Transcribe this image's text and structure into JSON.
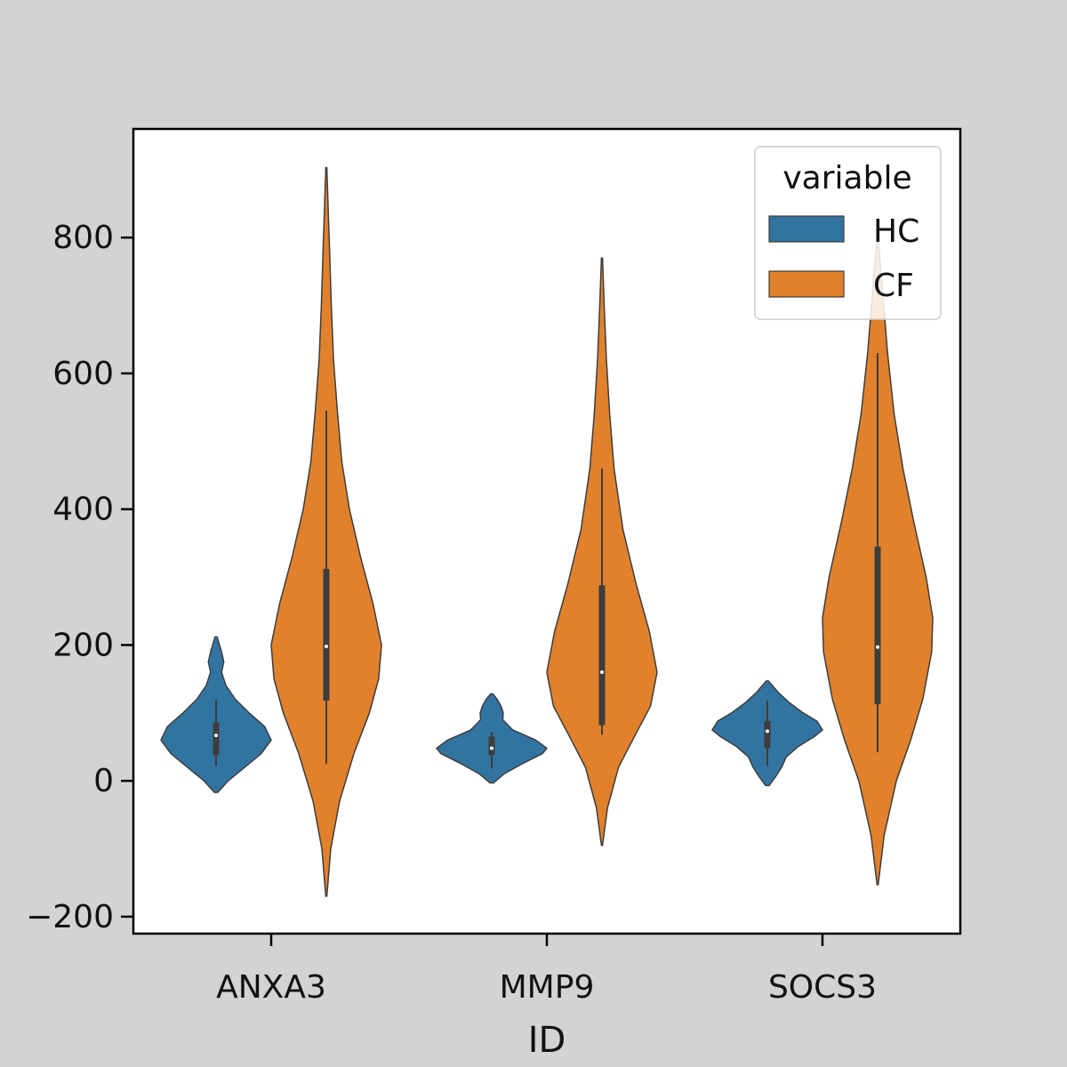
{
  "chart_data": {
    "type": "violin",
    "xlabel": "ID",
    "ylabel": "",
    "categories": [
      "ANXA3",
      "MMP9",
      "SOCS3"
    ],
    "ylim": [
      -225,
      960
    ],
    "yticks": [
      -200,
      0,
      200,
      400,
      600,
      800
    ],
    "ytick_labels": [
      "−200",
      "0",
      "200",
      "400",
      "600",
      "800"
    ],
    "grid": false,
    "legend": {
      "title": "variable",
      "placement": "top-right"
    },
    "series": [
      {
        "name": "HC",
        "color": "#3274a1",
        "violins": [
          {
            "category": "ANXA3",
            "min": 22,
            "q1": 38,
            "median": 67,
            "q3": 86,
            "max": 120,
            "kde_min": -17,
            "kde_max": 212,
            "density": [
              [
                -17,
                0.03
              ],
              [
                0,
                0.22
              ],
              [
                20,
                0.52
              ],
              [
                40,
                0.82
              ],
              [
                60,
                1.0
              ],
              [
                80,
                0.88
              ],
              [
                100,
                0.6
              ],
              [
                120,
                0.35
              ],
              [
                140,
                0.18
              ],
              [
                160,
                0.1
              ],
              [
                175,
                0.14
              ],
              [
                190,
                0.1
              ],
              [
                212,
                0.02
              ]
            ]
          },
          {
            "category": "MMP9",
            "min": 18,
            "q1": 38,
            "median": 48,
            "q3": 65,
            "max": 72,
            "kde_min": -3,
            "kde_max": 128,
            "density": [
              [
                -3,
                0.03
              ],
              [
                10,
                0.22
              ],
              [
                25,
                0.55
              ],
              [
                40,
                0.92
              ],
              [
                48,
                1.0
              ],
              [
                60,
                0.8
              ],
              [
                75,
                0.38
              ],
              [
                90,
                0.2
              ],
              [
                100,
                0.21
              ],
              [
                110,
                0.17
              ],
              [
                120,
                0.1
              ],
              [
                128,
                0.02
              ]
            ]
          },
          {
            "category": "SOCS3",
            "min": 22,
            "q1": 48,
            "median": 73,
            "q3": 88,
            "max": 118,
            "kde_min": -7,
            "kde_max": 147,
            "density": [
              [
                -7,
                0.03
              ],
              [
                5,
                0.14
              ],
              [
                20,
                0.26
              ],
              [
                35,
                0.34
              ],
              [
                50,
                0.55
              ],
              [
                65,
                0.85
              ],
              [
                75,
                1.0
              ],
              [
                88,
                0.9
              ],
              [
                100,
                0.65
              ],
              [
                115,
                0.4
              ],
              [
                130,
                0.2
              ],
              [
                147,
                0.02
              ]
            ]
          }
        ]
      },
      {
        "name": "CF",
        "color": "#e1812c",
        "violins": [
          {
            "category": "ANXA3",
            "min": 25,
            "q1": 118,
            "median": 198,
            "q3": 312,
            "max": 545,
            "kde_min": -170,
            "kde_max": 903,
            "density": [
              [
                -170,
                0.01
              ],
              [
                -100,
                0.08
              ],
              [
                -30,
                0.24
              ],
              [
                40,
                0.5
              ],
              [
                100,
                0.78
              ],
              [
                150,
                0.95
              ],
              [
                200,
                1.0
              ],
              [
                260,
                0.85
              ],
              [
                330,
                0.62
              ],
              [
                400,
                0.42
              ],
              [
                470,
                0.28
              ],
              [
                545,
                0.2
              ],
              [
                620,
                0.13
              ],
              [
                700,
                0.09
              ],
              [
                780,
                0.06
              ],
              [
                850,
                0.03
              ],
              [
                903,
                0.01
              ]
            ]
          },
          {
            "category": "MMP9",
            "min": 68,
            "q1": 82,
            "median": 160,
            "q3": 288,
            "max": 460,
            "kde_min": -95,
            "kde_max": 770,
            "density": [
              [
                -95,
                0.01
              ],
              [
                -40,
                0.1
              ],
              [
                20,
                0.3
              ],
              [
                70,
                0.62
              ],
              [
                110,
                0.88
              ],
              [
                160,
                1.0
              ],
              [
                220,
                0.86
              ],
              [
                290,
                0.62
              ],
              [
                370,
                0.38
              ],
              [
                460,
                0.22
              ],
              [
                540,
                0.14
              ],
              [
                620,
                0.08
              ],
              [
                700,
                0.04
              ],
              [
                770,
                0.01
              ]
            ]
          },
          {
            "category": "SOCS3",
            "min": 42,
            "q1": 113,
            "median": 197,
            "q3": 345,
            "max": 630,
            "kde_min": -153,
            "kde_max": 800,
            "density": [
              [
                -153,
                0.01
              ],
              [
                -80,
                0.12
              ],
              [
                0,
                0.34
              ],
              [
                60,
                0.6
              ],
              [
                120,
                0.82
              ],
              [
                190,
                0.98
              ],
              [
                240,
                1.0
              ],
              [
                300,
                0.88
              ],
              [
                380,
                0.66
              ],
              [
                460,
                0.46
              ],
              [
                540,
                0.3
              ],
              [
                630,
                0.18
              ],
              [
                710,
                0.1
              ],
              [
                760,
                0.05
              ],
              [
                800,
                0.01
              ]
            ]
          }
        ]
      }
    ]
  }
}
